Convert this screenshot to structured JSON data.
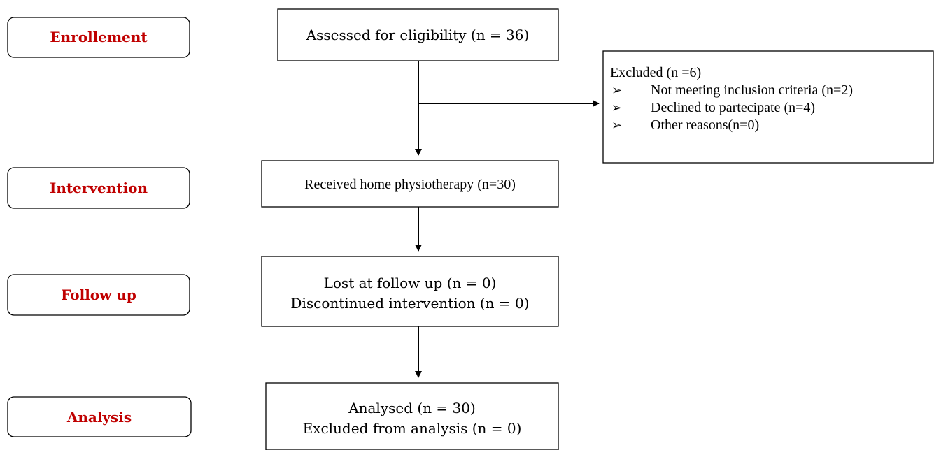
{
  "stages": [
    "Enrollement",
    "Intervention",
    "Follow up",
    "Analysis"
  ],
  "nodes": [
    {
      "lines": [
        "Assessed for eligibility (n  = 36)"
      ]
    },
    {
      "lines": [
        "Received home physiotherapy (n=30)"
      ]
    },
    {
      "lines": [
        "Lost at follow up (n = 0)",
        "Discontinued intervention (n = 0)"
      ]
    },
    {
      "lines": [
        "Analysed (n = 30)",
        "Excluded from analysis (n = 0)"
      ]
    }
  ],
  "excluded": {
    "title": "Excluded (n =6)",
    "items": [
      "Not meeting inclusion criteria  (n=2)",
      "Declined to partecipate (n=4)",
      "Other reasons(n=0)"
    ]
  }
}
